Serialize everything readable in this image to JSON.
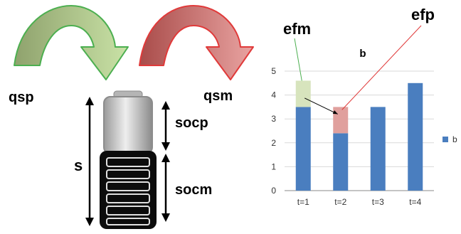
{
  "diagram": {
    "labels": {
      "qsp": "qsp",
      "qsm": "qsm",
      "socp": "socp",
      "socm": "socm",
      "s": "s",
      "efm": "efm",
      "efp": "efp"
    },
    "colors": {
      "green_arrow_fill": "#b4d08c",
      "green_arrow_stroke": "#4caf50",
      "red_arrow_fill": "#d98a88",
      "red_arrow_stroke": "#e03a3a",
      "bar_blue": "#4a7ebf",
      "efm_green": "#d7e4bd",
      "efp_red": "#e0a09d",
      "efm_line": "#4caf50",
      "efp_line": "#e03a3a"
    }
  },
  "chart_data": {
    "type": "bar",
    "title": "b",
    "categories": [
      "t=1",
      "t=2",
      "t=3",
      "t=4"
    ],
    "series": [
      {
        "name": "b",
        "values": [
          3.5,
          2.4,
          3.5,
          4.5
        ]
      }
    ],
    "overlays": [
      {
        "label": "efm",
        "category": "t=1",
        "from": 3.5,
        "to": 4.6
      },
      {
        "label": "efp",
        "category": "t=2",
        "from": 2.4,
        "to": 3.5
      }
    ],
    "ylim": [
      0,
      5
    ],
    "yticks": [
      0,
      1,
      2,
      3,
      4,
      5
    ],
    "legend": "right",
    "grid": true
  }
}
